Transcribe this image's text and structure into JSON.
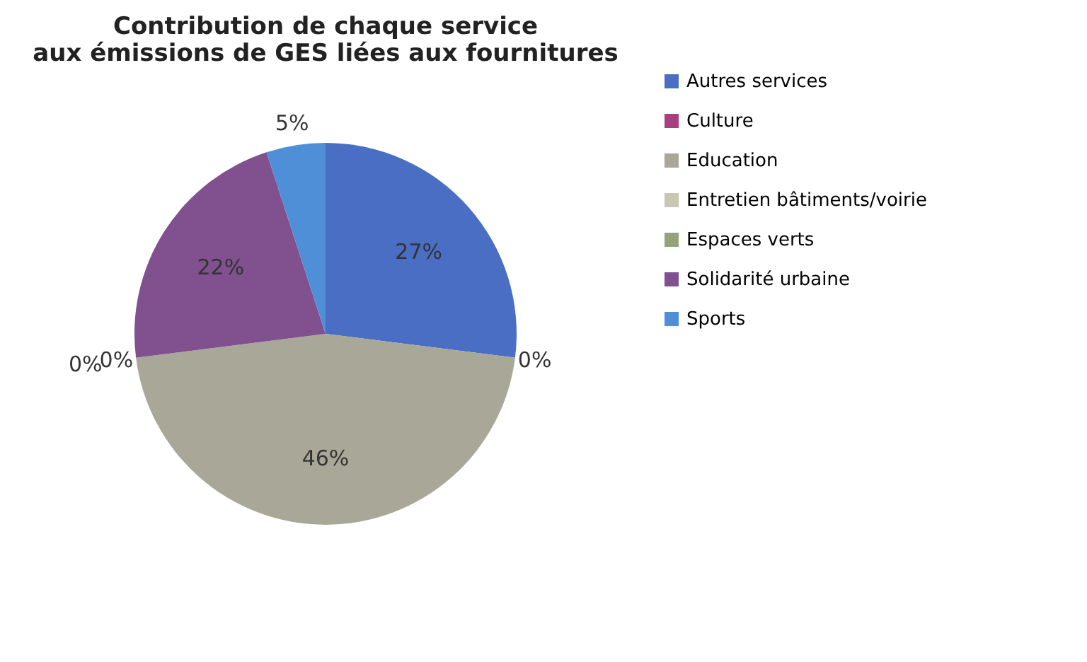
{
  "chart_data": {
    "type": "pie",
    "title": "Contribution de chaque service\naux émissions de GES liées aux fournitures",
    "categories": [
      "Autres services",
      "Culture",
      "Education",
      "Entretien bâtiments/voirie",
      "Espaces verts",
      "Solidarité urbaine",
      "Sports"
    ],
    "values": [
      27,
      0,
      46,
      0,
      0,
      22,
      5
    ],
    "colors": [
      "#4a6ec4",
      "#a8407e",
      "#a9a898",
      "#c9c7b2",
      "#98a27a",
      "#80508f",
      "#4f8fd8"
    ],
    "value_labels": [
      "27%",
      "0%",
      "46%",
      "0%",
      "0%",
      "22%",
      "5%"
    ],
    "legend": "right"
  }
}
